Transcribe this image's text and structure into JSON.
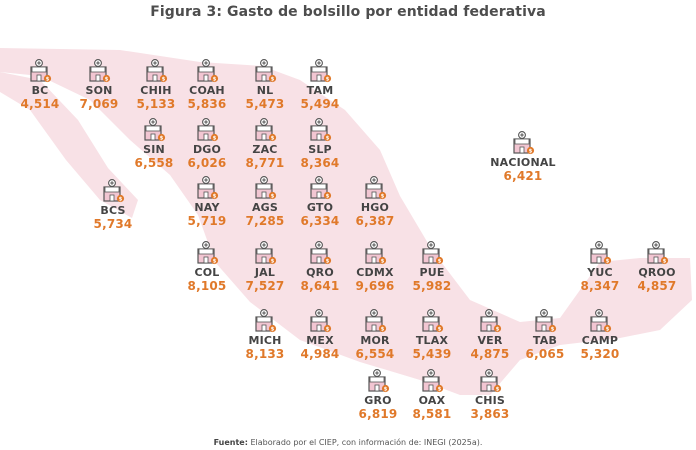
{
  "chart_data": {
    "type": "table",
    "title": "Figura 3: Gasto de bolsillo por entidad federativa",
    "source_label": "Fuente:",
    "source_text": "Elaborado por el CIEP, con información de: INEGI (2025a).",
    "colors": {
      "value": "#e0792a",
      "label": "#444444",
      "map": "#f8e1e6",
      "icon_fill": "#f2c6d2",
      "icon_outline": "#555555",
      "icon_badge": "#e0792a"
    },
    "icon": "pharmacy-building-icon",
    "entities": [
      {
        "label": "BC",
        "value": "4,514"
      },
      {
        "label": "SON",
        "value": "7,069"
      },
      {
        "label": "CHIH",
        "value": "5,133"
      },
      {
        "label": "COAH",
        "value": "5,836"
      },
      {
        "label": "NL",
        "value": "5,473"
      },
      {
        "label": "TAM",
        "value": "5,494"
      },
      {
        "label": "SIN",
        "value": "6,558"
      },
      {
        "label": "DGO",
        "value": "6,026"
      },
      {
        "label": "ZAC",
        "value": "8,771"
      },
      {
        "label": "SLP",
        "value": "8,364"
      },
      {
        "label": "NACIONAL",
        "value": "6,421"
      },
      {
        "label": "BCS",
        "value": "5,734"
      },
      {
        "label": "NAY",
        "value": "5,719"
      },
      {
        "label": "AGS",
        "value": "7,285"
      },
      {
        "label": "GTO",
        "value": "6,334"
      },
      {
        "label": "HGO",
        "value": "6,387"
      },
      {
        "label": "COL",
        "value": "8,105"
      },
      {
        "label": "JAL",
        "value": "7,527"
      },
      {
        "label": "QRO",
        "value": "8,641"
      },
      {
        "label": "CDMX",
        "value": "9,696"
      },
      {
        "label": "PUE",
        "value": "5,982"
      },
      {
        "label": "YUC",
        "value": "8,347"
      },
      {
        "label": "QROO",
        "value": "4,857"
      },
      {
        "label": "MICH",
        "value": "8,133"
      },
      {
        "label": "MEX",
        "value": "4,984"
      },
      {
        "label": "MOR",
        "value": "6,554"
      },
      {
        "label": "TLAX",
        "value": "5,439"
      },
      {
        "label": "VER",
        "value": "4,875"
      },
      {
        "label": "TAB",
        "value": "6,065"
      },
      {
        "label": "CAMP",
        "value": "5,320"
      },
      {
        "label": "GRO",
        "value": "6,819"
      },
      {
        "label": "OAX",
        "value": "8,581"
      },
      {
        "label": "CHIS",
        "value": "3,863"
      }
    ]
  }
}
